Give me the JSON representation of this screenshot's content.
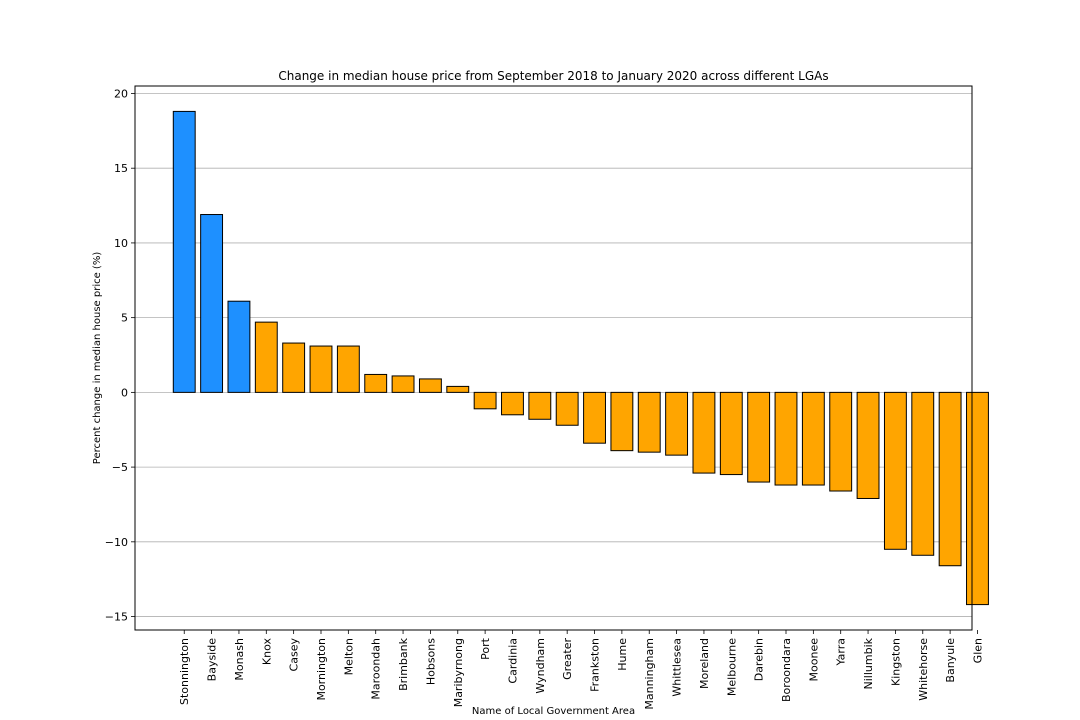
{
  "chart_data": {
    "type": "bar",
    "title": "Change in median house price from September 2018 to January 2020 across different LGAs",
    "xlabel": "Name of Local Government Area",
    "ylabel": "Percent change in median house price (%)",
    "ylim": [
      -15.9,
      20.5
    ],
    "yticks": [
      -15,
      -10,
      -5,
      0,
      5,
      10,
      15,
      20
    ],
    "ytick_labels": [
      "−15",
      "−10",
      "−5",
      "0",
      "5",
      "10",
      "15",
      "20"
    ],
    "grid": "horizontal",
    "categories": [
      "Stonnington",
      "Bayside",
      "Monash",
      "Knox",
      "Casey",
      "Mornington",
      "Melton",
      "Maroondah",
      "Brimbank",
      "Hobsons",
      "Maribyrnong",
      "Port",
      "Cardinia",
      "Wyndham",
      "Greater",
      "Frankston",
      "Hume",
      "Manningham",
      "Whittlesea",
      "Moreland",
      "Melbourne",
      "Darebin",
      "Boroondara",
      "Moonee",
      "Yarra",
      "Nillumbik",
      "Kingston",
      "Whitehorse",
      "Banyule",
      "Glen"
    ],
    "values": [
      18.8,
      11.9,
      6.1,
      4.7,
      3.3,
      3.1,
      3.1,
      1.2,
      1.1,
      0.9,
      0.4,
      -1.1,
      -1.5,
      -1.8,
      -2.2,
      -3.4,
      -3.9,
      -4.0,
      -4.2,
      -5.4,
      -5.5,
      -6.0,
      -6.2,
      -6.2,
      -6.6,
      -7.1,
      -10.5,
      -10.9,
      -11.6,
      -14.2
    ],
    "colors": [
      "#1e90ff",
      "#1e90ff",
      "#1e90ff",
      "#ffa500",
      "#ffa500",
      "#ffa500",
      "#ffa500",
      "#ffa500",
      "#ffa500",
      "#ffa500",
      "#ffa500",
      "#ffa500",
      "#ffa500",
      "#ffa500",
      "#ffa500",
      "#ffa500",
      "#ffa500",
      "#ffa500",
      "#ffa500",
      "#ffa500",
      "#ffa500",
      "#ffa500",
      "#ffa500",
      "#ffa500",
      "#ffa500",
      "#ffa500",
      "#ffa500",
      "#ffa500",
      "#ffa500",
      "#ffa500"
    ]
  }
}
